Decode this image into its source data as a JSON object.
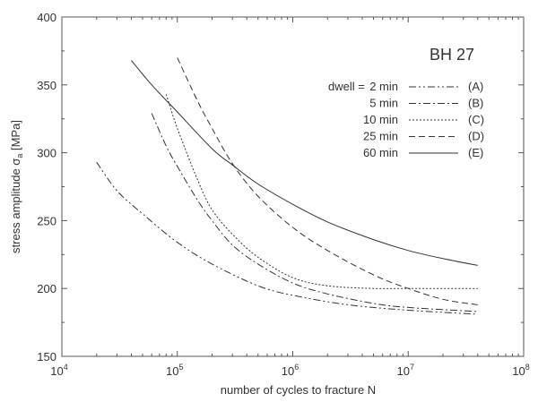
{
  "chart_data": {
    "type": "line",
    "title": "",
    "annotation": "BH 27",
    "xlabel": "number of cycles to fracture  N",
    "ylabel_main": "stress amplitude ",
    "ylabel_symbol": "σ",
    "ylabel_subscript": "a",
    "ylabel_unit": "  [MPa]",
    "xscale": "log",
    "xlim": [
      10000,
      100000000
    ],
    "ylim": [
      150,
      400
    ],
    "grid": false,
    "x_ticks": [
      {
        "base": "10",
        "exp": "4",
        "value": 10000
      },
      {
        "base": "10",
        "exp": "5",
        "value": 100000
      },
      {
        "base": "10",
        "exp": "6",
        "value": 1000000
      },
      {
        "base": "10",
        "exp": "7",
        "value": 10000000
      },
      {
        "base": "10",
        "exp": "8",
        "value": 100000000
      }
    ],
    "y_ticks": [
      {
        "label": "150",
        "value": 150
      },
      {
        "label": "200",
        "value": 200
      },
      {
        "label": "250",
        "value": 250
      },
      {
        "label": "300",
        "value": 300
      },
      {
        "label": "350",
        "value": 350
      },
      {
        "label": "400",
        "value": 400
      }
    ],
    "legend": {
      "position": "top-right",
      "title": "dwell ="
    },
    "series": [
      {
        "name": "2 min",
        "id": "(A)",
        "style": "dash-dot-dot",
        "x": [
          20000,
          30000,
          50000,
          100000,
          200000,
          500000,
          1000000,
          3000000,
          10000000,
          40000000
        ],
        "y": [
          293,
          272,
          255,
          234,
          218,
          202,
          195,
          188,
          184,
          181
        ]
      },
      {
        "name": "5 min",
        "id": "(B)",
        "style": "dash-dot",
        "x": [
          60000,
          80000,
          100000,
          150000,
          200000,
          300000,
          500000,
          1000000,
          2000000,
          5000000,
          10000000,
          40000000
        ],
        "y": [
          329,
          305,
          290,
          265,
          250,
          232,
          218,
          204,
          196,
          189,
          186,
          183
        ]
      },
      {
        "name": "10 min",
        "id": "(C)",
        "style": "dotted",
        "x": [
          80000,
          100000,
          150000,
          200000,
          300000,
          500000,
          1000000,
          2000000,
          5000000,
          10000000,
          40000000
        ],
        "y": [
          343,
          318,
          280,
          258,
          240,
          223,
          208,
          202,
          200,
          200,
          200
        ]
      },
      {
        "name": "25 min",
        "id": "(D)",
        "style": "dashed",
        "x": [
          100000,
          150000,
          200000,
          300000,
          500000,
          1000000,
          2000000,
          5000000,
          10000000,
          20000000,
          40000000
        ],
        "y": [
          370,
          338,
          318,
          292,
          268,
          245,
          228,
          210,
          200,
          192,
          188
        ]
      },
      {
        "name": "60 min",
        "id": "(E)",
        "style": "solid",
        "x": [
          40000,
          60000,
          100000,
          200000,
          300000,
          500000,
          1000000,
          2000000,
          5000000,
          10000000,
          20000000,
          40000000
        ],
        "y": [
          368,
          350,
          330,
          303,
          291,
          277,
          262,
          249,
          236,
          228,
          222,
          217
        ]
      }
    ]
  }
}
